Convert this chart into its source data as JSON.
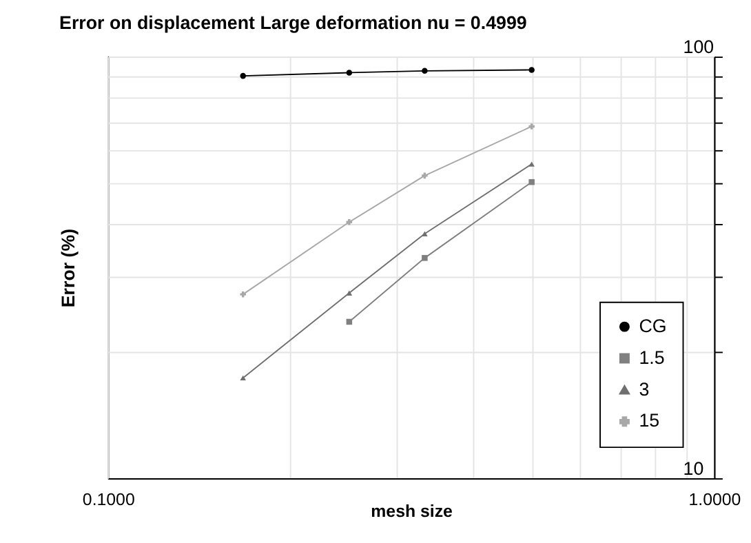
{
  "chart_data": {
    "type": "line",
    "title": "Error on displacement Large deformation nu = 0.4999",
    "xlabel": "mesh size",
    "ylabel": "Error (%)",
    "x": [
      0.167,
      0.25,
      0.333,
      0.5
    ],
    "series": [
      {
        "name": "CG",
        "color": "#000000",
        "marker": "circle",
        "values": [
          90,
          91.6,
          92.5,
          93
        ]
      },
      {
        "name": "1.5",
        "color": "#808080",
        "marker": "square",
        "values": [
          null,
          23.5,
          33.3,
          50.4
        ]
      },
      {
        "name": "3",
        "color": "#707070",
        "marker": "triangle",
        "values": [
          17.3,
          27.5,
          38,
          55.6
        ]
      },
      {
        "name": "15",
        "color": "#a8a8a8",
        "marker": "cross",
        "values": [
          27.3,
          40.5,
          52.2,
          68.3
        ]
      }
    ],
    "log": "xy",
    "xlim": [
      0.1,
      1.0
    ],
    "xticks": [
      {
        "value": 0.1,
        "label": "0.1000"
      },
      {
        "value": 0.2,
        "label": null
      },
      {
        "value": 0.3,
        "label": null
      },
      {
        "value": 0.4,
        "label": null
      },
      {
        "value": 0.5,
        "label": null
      },
      {
        "value": 0.6,
        "label": null
      },
      {
        "value": 0.7,
        "label": null
      },
      {
        "value": 0.8,
        "label": null
      },
      {
        "value": 0.9,
        "label": null
      },
      {
        "value": 1.0,
        "label": "1.0000"
      }
    ],
    "ylim": [
      10,
      100
    ],
    "yticks": [
      10,
      {
        "value": 20,
        "label": null
      },
      {
        "value": 30,
        "label": null
      },
      {
        "value": 40,
        "label": null
      },
      {
        "value": 50,
        "label": null
      },
      {
        "value": 60,
        "label": null
      },
      {
        "value": 70,
        "label": null
      },
      {
        "value": 80,
        "label": null
      },
      {
        "value": 90,
        "label": null
      },
      100
    ],
    "grid": true,
    "legend": "bottom right"
  }
}
